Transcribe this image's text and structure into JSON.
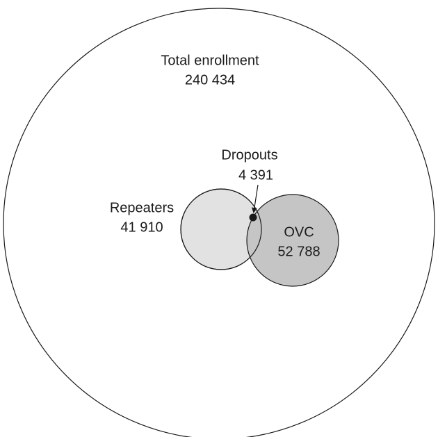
{
  "diagram": {
    "outer": {
      "label": "Total enrollment",
      "value": "240 434"
    },
    "sets": [
      {
        "label": "Repeaters",
        "value": "41 910"
      },
      {
        "label": "OVC",
        "value": "52 788"
      }
    ],
    "overlap": {
      "label": "Dropouts",
      "value": "4 391"
    }
  }
}
